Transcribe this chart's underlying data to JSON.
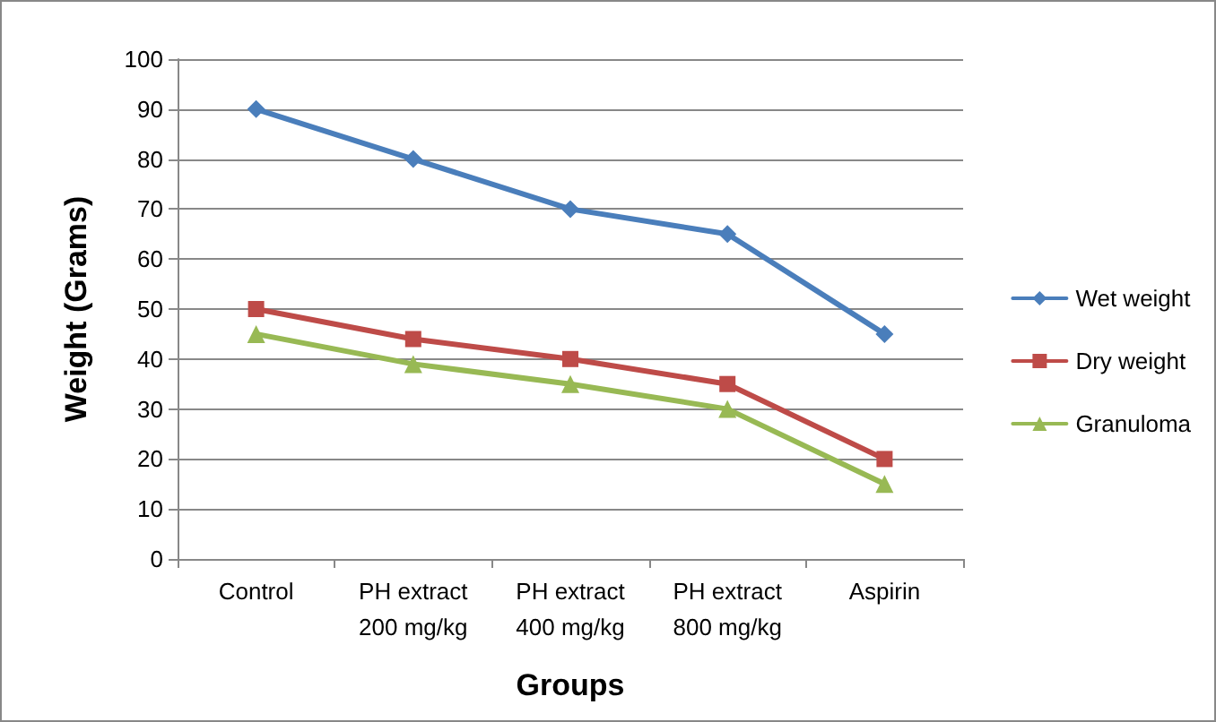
{
  "chart_data": {
    "type": "line",
    "xlabel": "Groups",
    "ylabel": "Weight (Grams)",
    "categories": [
      "Control",
      "PH extract\n200 mg/kg",
      "PH extract\n400 mg/kg",
      "PH extract\n800 mg/kg",
      "Aspirin"
    ],
    "series": [
      {
        "name": "Wet weight",
        "color": "#4a7ebb",
        "values": [
          90,
          80,
          70,
          65,
          45
        ],
        "marker": "diamond"
      },
      {
        "name": "Dry weight",
        "color": "#be4b48",
        "values": [
          50,
          44,
          40,
          35,
          20
        ],
        "marker": "square"
      },
      {
        "name": "Granuloma",
        "color": "#98b954",
        "values": [
          45,
          39,
          35,
          30,
          15
        ],
        "marker": "triangle"
      }
    ],
    "ylim": [
      0,
      100
    ],
    "yticks": [
      0,
      10,
      20,
      30,
      40,
      50,
      60,
      70,
      80,
      90,
      100
    ],
    "grid": "y",
    "legend": "right",
    "line_style": "solid"
  }
}
